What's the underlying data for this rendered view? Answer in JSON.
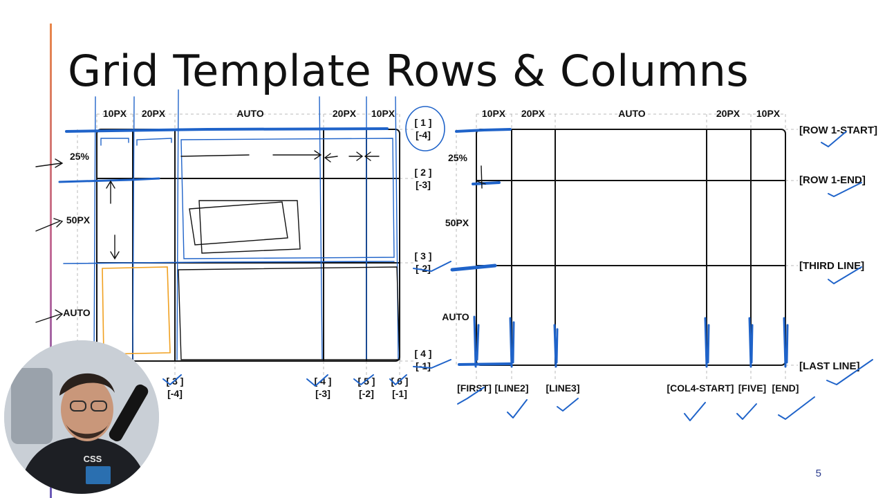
{
  "slide": {
    "title": "Grid Template Rows & Columns",
    "page_number": "5"
  },
  "left_grid": {
    "col_sizes": [
      "10PX",
      "20PX",
      "AUTO",
      "20PX",
      "10PX"
    ],
    "row_sizes": [
      "25%",
      "50PX",
      "AUTO"
    ],
    "row_line_labels": [
      [
        "[ 1 ]",
        "[-4]"
      ],
      [
        "[ 2 ]",
        "[-3]"
      ],
      [
        "[ 3 ]",
        "[-2]"
      ],
      [
        "[ 4 ]",
        "[-1]"
      ]
    ],
    "col_line_labels": [
      [
        "[ 3 ]",
        "[-4]"
      ],
      [
        "[ 4 ]",
        "[-3]"
      ],
      [
        "[ 5 ]",
        "[-2]"
      ],
      [
        "[ 6 ]",
        "[-1]"
      ]
    ]
  },
  "right_grid": {
    "col_sizes": [
      "10PX",
      "20PX",
      "AUTO",
      "20PX",
      "10PX"
    ],
    "row_sizes": [
      "25%",
      "50PX",
      "AUTO"
    ],
    "row_line_names": [
      "[ROW 1-START]",
      "[ROW 1-END]",
      "[THIRD LINE]",
      "[LAST LINE]"
    ],
    "col_line_names": [
      "[FIRST]",
      "[LINE2]",
      "[LINE3]",
      "[COL4-START]",
      "[FIVE]",
      "[END]"
    ]
  },
  "colors": {
    "ink": "#111111",
    "annotation_blue": "#1f63c9",
    "annotation_orange": "#f0a020",
    "page_number": "#2a3a8c"
  }
}
